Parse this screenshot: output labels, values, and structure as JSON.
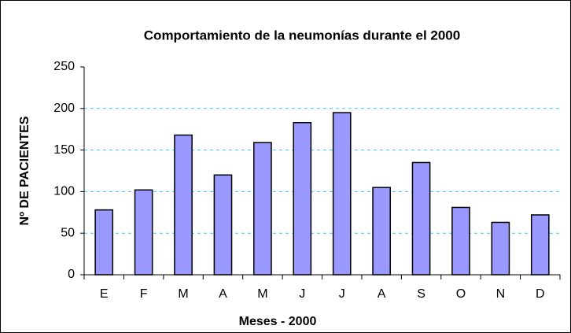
{
  "chart_data": {
    "type": "bar",
    "title": "Comportamiento de la neumonías durante el 2000",
    "x_label": "Meses - 2000",
    "y_label": "Nº DE PACIENTES",
    "categories": [
      "E",
      "F",
      "M",
      "A",
      "M",
      "J",
      "J",
      "A",
      "S",
      "O",
      "N",
      "D"
    ],
    "values": [
      78,
      102,
      168,
      120,
      159,
      183,
      195,
      105,
      135,
      81,
      63,
      72
    ],
    "color": "#9999ff",
    "ylim": [
      0,
      250
    ],
    "yticks": [
      0,
      50,
      100,
      150,
      200,
      250
    ],
    "grid": true
  }
}
